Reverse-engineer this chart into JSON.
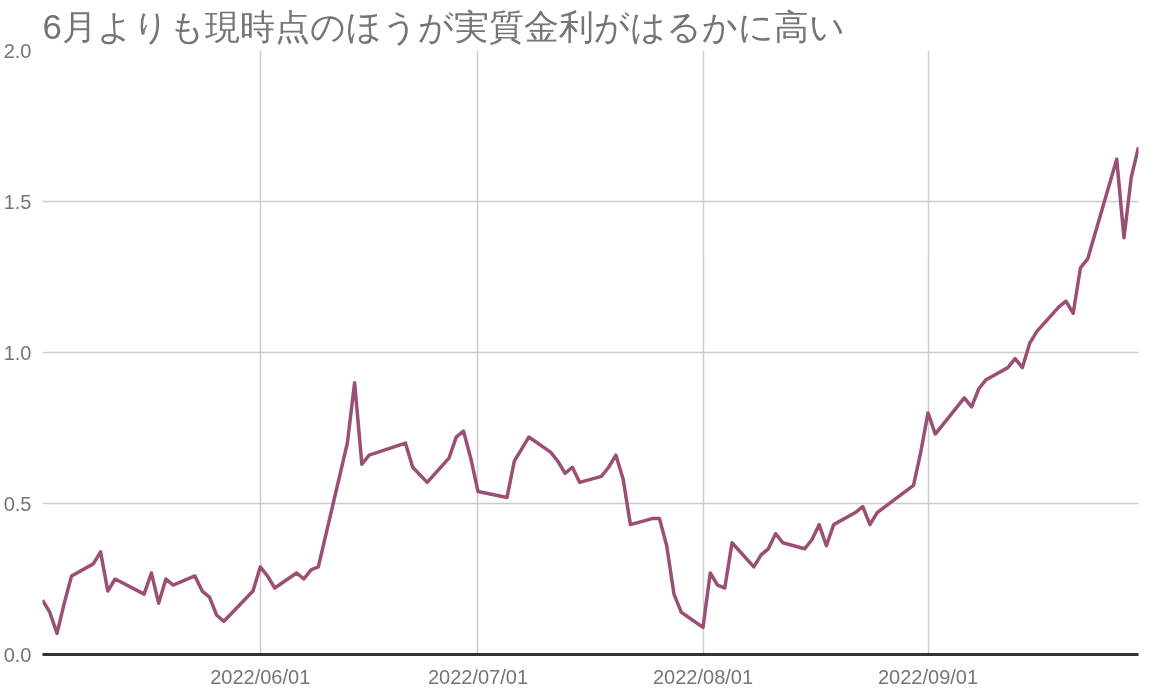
{
  "chart_data": {
    "type": "line",
    "title": "6月よりも現時点のほうが実質金利がはるかに高い",
    "x": [
      "2022-05-02",
      "2022-05-03",
      "2022-05-04",
      "2022-05-05",
      "2022-05-06",
      "2022-05-09",
      "2022-05-10",
      "2022-05-11",
      "2022-05-12",
      "2022-05-16",
      "2022-05-17",
      "2022-05-18",
      "2022-05-19",
      "2022-05-20",
      "2022-05-23",
      "2022-05-24",
      "2022-05-25",
      "2022-05-26",
      "2022-05-27",
      "2022-05-31",
      "2022-06-01",
      "2022-06-02",
      "2022-06-03",
      "2022-06-06",
      "2022-06-07",
      "2022-06-08",
      "2022-06-09",
      "2022-06-13",
      "2022-06-14",
      "2022-06-15",
      "2022-06-16",
      "2022-06-21",
      "2022-06-22",
      "2022-06-24",
      "2022-06-27",
      "2022-06-28",
      "2022-06-29",
      "2022-06-30",
      "2022-07-01",
      "2022-07-05",
      "2022-07-06",
      "2022-07-08",
      "2022-07-11",
      "2022-07-12",
      "2022-07-13",
      "2022-07-14",
      "2022-07-15",
      "2022-07-18",
      "2022-07-19",
      "2022-07-20",
      "2022-07-21",
      "2022-07-22",
      "2022-07-25",
      "2022-07-26",
      "2022-07-27",
      "2022-07-28",
      "2022-07-29",
      "2022-08-01",
      "2022-08-02",
      "2022-08-03",
      "2022-08-04",
      "2022-08-05",
      "2022-08-08",
      "2022-08-09",
      "2022-08-10",
      "2022-08-11",
      "2022-08-12",
      "2022-08-15",
      "2022-08-16",
      "2022-08-17",
      "2022-08-18",
      "2022-08-19",
      "2022-08-22",
      "2022-08-23",
      "2022-08-24",
      "2022-08-25",
      "2022-08-30",
      "2022-08-31",
      "2022-09-01",
      "2022-09-02",
      "2022-09-06",
      "2022-09-07",
      "2022-09-08",
      "2022-09-09",
      "2022-09-12",
      "2022-09-13",
      "2022-09-14",
      "2022-09-15",
      "2022-09-16",
      "2022-09-19",
      "2022-09-20",
      "2022-09-21",
      "2022-09-22",
      "2022-09-23",
      "2022-09-27",
      "2022-09-28",
      "2022-09-29",
      "2022-09-30"
    ],
    "series": [
      {
        "color": "#9b4f75",
        "values": [
          0.18,
          0.14,
          0.07,
          0.17,
          0.26,
          0.3,
          0.34,
          0.21,
          0.25,
          0.2,
          0.27,
          0.17,
          0.25,
          0.23,
          0.26,
          0.21,
          0.19,
          0.13,
          0.11,
          0.21,
          0.29,
          0.26,
          0.22,
          0.27,
          0.25,
          0.28,
          0.29,
          0.7,
          0.9,
          0.63,
          0.66,
          0.7,
          0.62,
          0.57,
          0.65,
          0.72,
          0.74,
          0.65,
          0.54,
          0.52,
          0.64,
          0.72,
          0.67,
          0.64,
          0.6,
          0.62,
          0.57,
          0.59,
          0.62,
          0.66,
          0.58,
          0.43,
          0.45,
          0.45,
          0.36,
          0.2,
          0.14,
          0.09,
          0.27,
          0.23,
          0.22,
          0.37,
          0.29,
          0.33,
          0.35,
          0.4,
          0.37,
          0.35,
          0.38,
          0.43,
          0.36,
          0.43,
          0.47,
          0.49,
          0.43,
          0.47,
          0.56,
          0.67,
          0.8,
          0.73,
          0.85,
          0.82,
          0.88,
          0.91,
          0.95,
          0.98,
          0.95,
          1.03,
          1.07,
          1.15,
          1.17,
          1.13,
          1.28,
          1.31,
          1.64,
          1.38,
          1.58,
          1.68
        ]
      }
    ],
    "xlim": [
      "2022-05-02",
      "2022-09-30"
    ],
    "xticks": [
      {
        "value": "2022-06-01",
        "label": "2022/06/01"
      },
      {
        "value": "2022-07-01",
        "label": "2022/07/01"
      },
      {
        "value": "2022-08-01",
        "label": "2022/08/01"
      },
      {
        "value": "2022-09-01",
        "label": "2022/09/01"
      }
    ],
    "ylim": [
      0,
      2
    ],
    "yticks": [
      {
        "value": 0,
        "label": "0.0"
      },
      {
        "value": 0.5,
        "label": "0.5"
      },
      {
        "value": 1,
        "label": "1.0"
      },
      {
        "value": 1.5,
        "label": "1.5"
      },
      {
        "value": 2,
        "label": "2.0"
      }
    ],
    "grid": true,
    "marker": "none",
    "line_style": "solid"
  }
}
